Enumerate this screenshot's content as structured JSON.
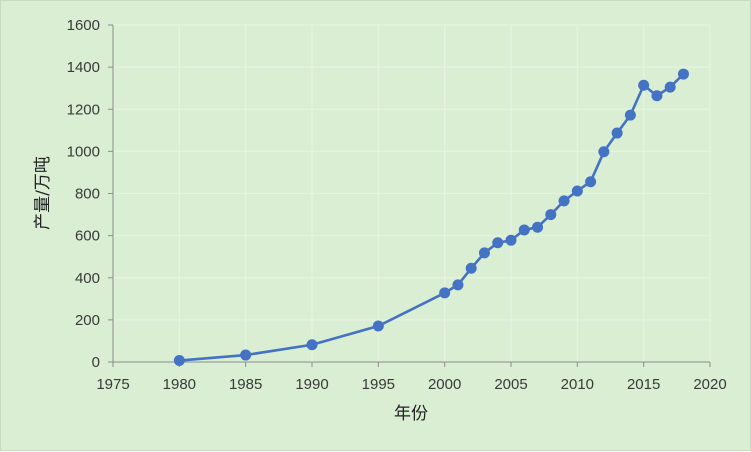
{
  "chart_data": {
    "type": "line",
    "title": "",
    "xlabel": "年份",
    "ylabel": "产量/万吨",
    "xlim": [
      1975,
      2020
    ],
    "ylim": [
      0,
      1600
    ],
    "x_ticks": [
      1975,
      1980,
      1985,
      1990,
      1995,
      2000,
      2005,
      2010,
      2015,
      2020
    ],
    "y_ticks": [
      0,
      200,
      400,
      600,
      800,
      1000,
      1200,
      1400,
      1600
    ],
    "x_tick_labels": [
      "1975",
      "1980",
      "1985",
      "1990",
      "1995",
      "2000",
      "2005",
      "2010",
      "2015",
      "2020"
    ],
    "y_tick_labels": [
      "0",
      "200",
      "400",
      "600",
      "800",
      "1000",
      "1200",
      "1400",
      "1600"
    ],
    "grid": true,
    "legend": "none",
    "series": [
      {
        "name": "产量",
        "color": "#4472c4",
        "x": [
          1980,
          1985,
          1990,
          1995,
          2000,
          2001,
          2002,
          2003,
          2004,
          2005,
          2006,
          2007,
          2008,
          2009,
          2010,
          2011,
          2012,
          2013,
          2014,
          2015,
          2016,
          2017,
          2018
        ],
        "values": [
          7,
          33,
          82,
          171,
          328,
          366,
          445,
          518,
          566,
          578,
          627,
          640,
          700,
          765,
          812,
          856,
          998,
          1087,
          1172,
          1314,
          1264,
          1305,
          1367
        ]
      }
    ]
  },
  "colors": {
    "background": "#d9eed3",
    "grid": "#e8f2e4",
    "axis": "#8c8c8c",
    "series": "#4472c4"
  }
}
